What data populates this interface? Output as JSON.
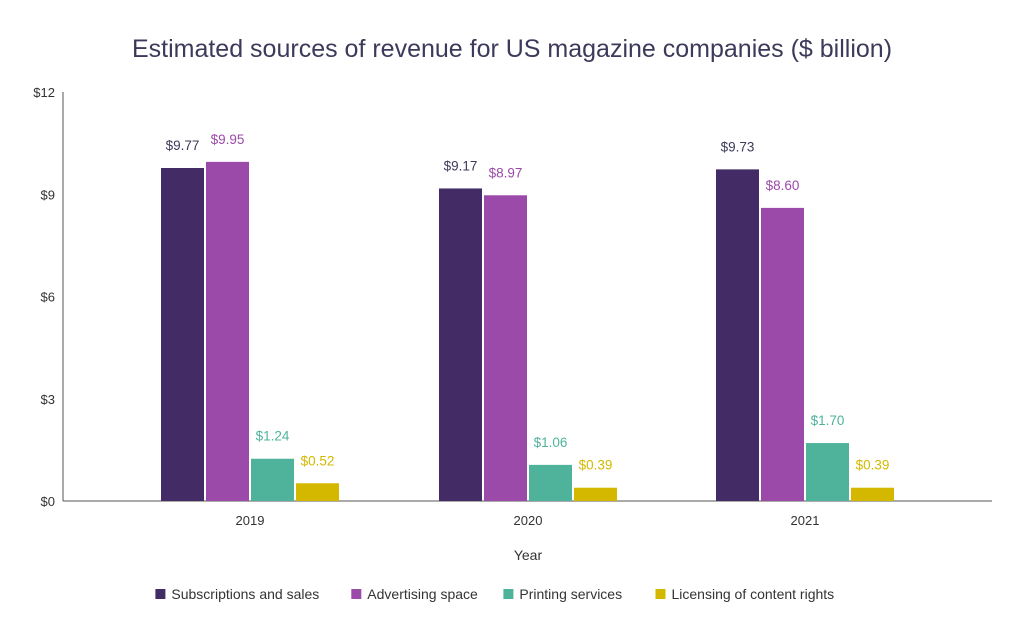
{
  "chart_data": {
    "type": "bar",
    "title": "Estimated sources of revenue for US magazine companies ($ billion)",
    "xlabel": "Year",
    "ylabel": "",
    "categories": [
      "2019",
      "2020",
      "2021"
    ],
    "ylim": [
      0,
      12
    ],
    "yticks": [
      0,
      3,
      6,
      9,
      12
    ],
    "ytick_labels": [
      "$0",
      "$3",
      "$6",
      "$9",
      "$12"
    ],
    "grid": false,
    "legend_position": "bottom",
    "series": [
      {
        "name": "Subscriptions and sales",
        "color": "#432c66",
        "values": [
          9.77,
          9.17,
          9.73
        ],
        "labels": [
          "$9.77",
          "$9.17",
          "$9.73"
        ]
      },
      {
        "name": "Advertising space",
        "color": "#9b4aa9",
        "values": [
          9.95,
          8.97,
          8.6
        ],
        "labels": [
          "$9.95",
          "$8.97",
          "$8.60"
        ]
      },
      {
        "name": "Printing services",
        "color": "#4fb39b",
        "values": [
          1.24,
          1.06,
          1.7
        ],
        "labels": [
          "$1.24",
          "$1.06",
          "$1.70"
        ]
      },
      {
        "name": "Licensing of content rights",
        "color": "#d4b800",
        "values": [
          0.52,
          0.39,
          0.39
        ],
        "labels": [
          "$0.52",
          "$0.39",
          "$0.39"
        ]
      }
    ],
    "colors": {
      "title": "#3c3a5a",
      "axis": "#555555",
      "text": "#333333"
    }
  }
}
